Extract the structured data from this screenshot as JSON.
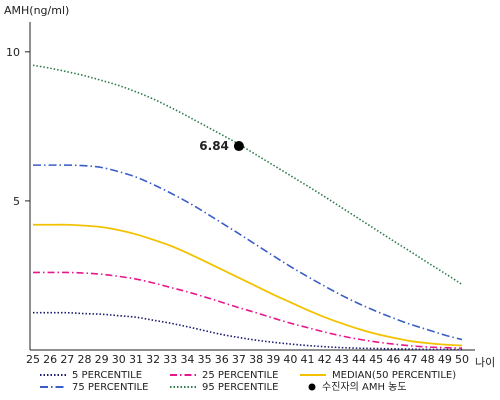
{
  "chart_data": {
    "type": "line",
    "ylabel": "AMH(ng/ml)",
    "xlabel": "나이",
    "xlim": [
      25,
      50
    ],
    "ylim": [
      0,
      11
    ],
    "x_ticks": [
      25,
      26,
      27,
      28,
      29,
      30,
      31,
      32,
      33,
      34,
      35,
      36,
      37,
      38,
      39,
      40,
      41,
      42,
      43,
      44,
      45,
      46,
      47,
      48,
      49,
      50
    ],
    "y_ticks": [
      5,
      10
    ],
    "grid": false,
    "x": [
      25,
      26,
      27,
      28,
      29,
      30,
      31,
      32,
      33,
      34,
      35,
      36,
      37,
      38,
      39,
      40,
      41,
      42,
      43,
      44,
      45,
      46,
      47,
      48,
      49,
      50
    ],
    "series": [
      {
        "name": "5 PERCENTILE",
        "color": "#1a1a6e",
        "dash": "1.5 2",
        "values": [
          1.25,
          1.25,
          1.25,
          1.22,
          1.2,
          1.15,
          1.1,
          1.0,
          0.9,
          0.78,
          0.65,
          0.52,
          0.42,
          0.33,
          0.26,
          0.2,
          0.15,
          0.11,
          0.08,
          0.06,
          0.05,
          0.04,
          0.03,
          0.02,
          0.02,
          0.01
        ]
      },
      {
        "name": "25 PERCENTILE",
        "color": "#e6178b",
        "dash": "7 3 1.5 3",
        "values": [
          2.6,
          2.6,
          2.6,
          2.58,
          2.54,
          2.47,
          2.38,
          2.25,
          2.1,
          1.95,
          1.78,
          1.6,
          1.42,
          1.25,
          1.07,
          0.9,
          0.75,
          0.6,
          0.47,
          0.36,
          0.27,
          0.2,
          0.14,
          0.1,
          0.08,
          0.06
        ]
      },
      {
        "name": "MEDIAN(50 PERCENTILE)",
        "color": "#f2c200",
        "dash": "",
        "values": [
          4.2,
          4.2,
          4.2,
          4.17,
          4.12,
          4.02,
          3.88,
          3.7,
          3.5,
          3.25,
          2.98,
          2.7,
          2.42,
          2.14,
          1.86,
          1.6,
          1.34,
          1.1,
          0.89,
          0.7,
          0.54,
          0.41,
          0.3,
          0.23,
          0.18,
          0.15
        ]
      },
      {
        "name": "75 PERCENTILE",
        "color": "#3a5ec8",
        "dash": "8 3 1.5 3",
        "values": [
          6.2,
          6.2,
          6.2,
          6.18,
          6.12,
          5.98,
          5.8,
          5.55,
          5.27,
          4.96,
          4.62,
          4.26,
          3.9,
          3.53,
          3.16,
          2.8,
          2.46,
          2.14,
          1.83,
          1.55,
          1.3,
          1.07,
          0.86,
          0.68,
          0.5,
          0.35
        ]
      },
      {
        "name": "95 PERCENTILE",
        "color": "#2d7a48",
        "dash": "1.5 2",
        "values": [
          9.55,
          9.45,
          9.33,
          9.2,
          9.04,
          8.87,
          8.66,
          8.42,
          8.14,
          7.84,
          7.53,
          7.22,
          6.9,
          6.55,
          6.2,
          5.85,
          5.5,
          5.14,
          4.77,
          4.4,
          4.03,
          3.66,
          3.3,
          2.93,
          2.57,
          2.2
        ]
      }
    ],
    "marker": {
      "name": "수진자의 AMH 농도",
      "x": 37,
      "y": 6.84,
      "label": "6.84"
    },
    "legend": {
      "placement": "bottom",
      "items": [
        {
          "label": "5 PERCENTILE",
          "series": 0
        },
        {
          "label": "25 PERCENTILE",
          "series": 1
        },
        {
          "label": "MEDIAN(50 PERCENTILE)",
          "series": 2
        },
        {
          "label": "75 PERCENTILE",
          "series": 3
        },
        {
          "label": "95 PERCENTILE",
          "series": 4
        },
        {
          "label": "수진자의 AMH 농도",
          "marker": true
        }
      ]
    }
  }
}
